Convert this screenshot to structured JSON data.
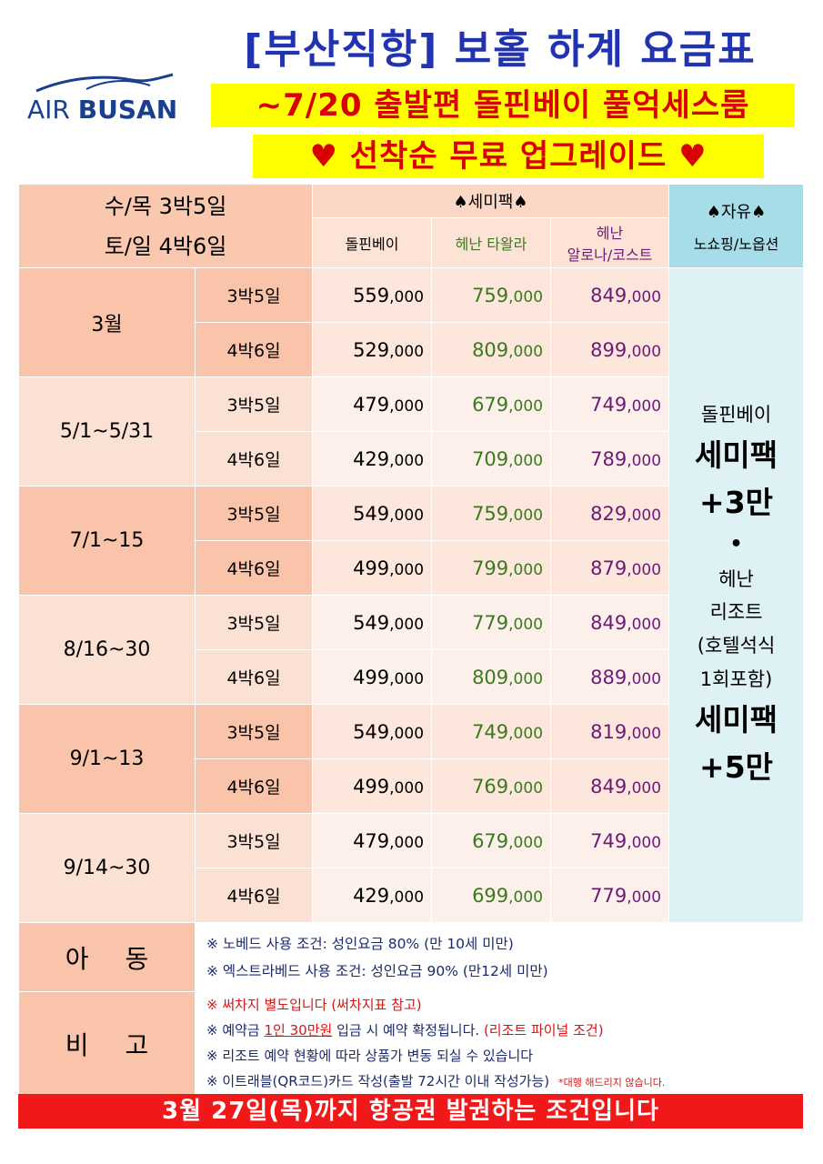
{
  "logo": {
    "air": "AIR",
    "busan": "BUSAN"
  },
  "title": "[부산직항] 보홀 하계 요금표",
  "highlight1": "~7/20 출발편 돌핀베이 풀억세스룸",
  "highlight2": "♥ 선착순 무료 업그레이드 ♥",
  "colors": {
    "title": "#2233b0",
    "highlight_bg": "#ffff00",
    "highlight_text": "#d80000",
    "logo": "#1a3f8f",
    "green": "#3a7a1e",
    "purple": "#6b1a7a",
    "bottom_bg": "#f01818"
  },
  "header": {
    "left_line1": "수/목  3박5일",
    "left_line2": "토/일  4박6일",
    "semi_pack": "♠세미팩♠",
    "col1": "돌핀베이",
    "col2": "헤난 타왈라",
    "col3_line1": "헤난",
    "col3_line2": "알로나/코스트",
    "free_title": "♠자유♠",
    "free_sub": "노쇼핑/노옵션"
  },
  "rows": [
    {
      "period": "3월",
      "items": [
        {
          "nights": "3박5일",
          "p1": "559",
          "p2": "759",
          "p3": "849"
        },
        {
          "nights": "4박6일",
          "p1": "529",
          "p2": "809",
          "p3": "899"
        }
      ]
    },
    {
      "period": "5/1~5/31",
      "items": [
        {
          "nights": "3박5일",
          "p1": "479",
          "p2": "679",
          "p3": "749"
        },
        {
          "nights": "4박6일",
          "p1": "429",
          "p2": "709",
          "p3": "789"
        }
      ]
    },
    {
      "period": "7/1~15",
      "items": [
        {
          "nights": "3박5일",
          "p1": "549",
          "p2": "759",
          "p3": "829"
        },
        {
          "nights": "4박6일",
          "p1": "499",
          "p2": "799",
          "p3": "879"
        }
      ]
    },
    {
      "period": "8/16~30",
      "items": [
        {
          "nights": "3박5일",
          "p1": "549",
          "p2": "779",
          "p3": "849"
        },
        {
          "nights": "4박6일",
          "p1": "499",
          "p2": "809",
          "p3": "889"
        }
      ]
    },
    {
      "period": "9/1~13",
      "items": [
        {
          "nights": "3박5일",
          "p1": "549",
          "p2": "749",
          "p3": "819"
        },
        {
          "nights": "4박6일",
          "p1": "499",
          "p2": "769",
          "p3": "849"
        }
      ]
    },
    {
      "period": "9/14~30",
      "items": [
        {
          "nights": "3박5일",
          "p1": "479",
          "p2": "679",
          "p3": "749"
        },
        {
          "nights": "4박6일",
          "p1": "429",
          "p2": "699",
          "p3": "779"
        }
      ]
    }
  ],
  "price_suffix": ",000",
  "free_side": {
    "line1": "돌핀베이",
    "line2": "세미팩",
    "line3": "+3만",
    "dot": "•",
    "line4": "헤난",
    "line5": "리조트",
    "line6": "(호텔석식",
    "line7": "1회포함)",
    "line8": "세미팩",
    "line9": "+5만"
  },
  "child": {
    "label": "아동",
    "line1": "※ 노베드 사용 조건: 성인요금 80% (만 10세 미만)",
    "line2": "※ 엑스트라베드 사용 조건: 성인요금 90% (만12세 미만)"
  },
  "remarks": {
    "label": "비고",
    "line1": "※ 써차지 별도입니다 (써차지표 참고)",
    "line2_a": "※ 예약금 ",
    "line2_b": "1인 30만원",
    "line2_c": " 입금 시 예약 확정됩니다. ",
    "line2_d": "(리조트 파이널 조건)",
    "line3": "※ 리조트 예약 현황에 따라 상품가 변동 되실 수 있습니다",
    "line4": "※ 이트래블(QR코드)카드 작성(출발 72시간 이내 작성가능)",
    "line4_small": "*대행 해드리지 않습니다."
  },
  "bottom": "3월 27일(목)까지 항공권 발권하는 조건입니다"
}
